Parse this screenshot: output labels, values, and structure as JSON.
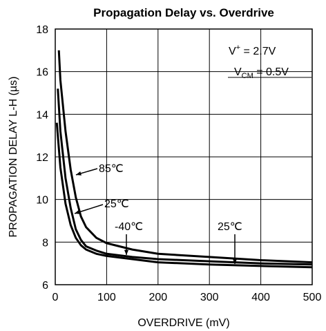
{
  "chart_data": {
    "type": "line",
    "title": "Propagation Delay vs. Overdrive",
    "x_label": "OVERDRIVE (mV)",
    "y_label": "PROPAGATION DELAY L-H (µs)",
    "xlim": [
      0,
      500
    ],
    "xticks": [
      0,
      100,
      200,
      300,
      400,
      500
    ],
    "ylim": [
      6,
      18
    ],
    "yticks": [
      6,
      8,
      10,
      12,
      14,
      16,
      18
    ],
    "grid": true,
    "series": [
      {
        "name": "85℃",
        "color": "#000000",
        "x": [
          7,
          10,
          20,
          30,
          40,
          50,
          60,
          80,
          100,
          150,
          200,
          300,
          400,
          500
        ],
        "values": [
          17,
          15.6,
          13.2,
          11.4,
          10.1,
          9.2,
          8.7,
          8.2,
          7.95,
          7.65,
          7.45,
          7.3,
          7.15,
          7.05
        ]
      },
      {
        "name": "25℃",
        "color": "#000000",
        "x": [
          5,
          10,
          20,
          30,
          40,
          50,
          60,
          80,
          100,
          150,
          200,
          300,
          400,
          500
        ],
        "values": [
          15.2,
          13.2,
          11,
          9.6,
          8.6,
          8.1,
          7.8,
          7.6,
          7.45,
          7.3,
          7.2,
          7.1,
          7.0,
          6.95
        ]
      },
      {
        "name": "-40℃",
        "color": "#000000",
        "x": [
          3,
          10,
          20,
          30,
          40,
          50,
          60,
          80,
          100,
          150,
          200,
          300,
          400,
          500
        ],
        "values": [
          13.6,
          11.5,
          9.8,
          8.8,
          8.2,
          7.85,
          7.65,
          7.45,
          7.35,
          7.2,
          7.05,
          6.95,
          6.88,
          6.82
        ]
      }
    ],
    "supply_label": {
      "main": "V",
      "sup": "+",
      "rest": " = 2.7V"
    },
    "vcm_label": {
      "main": "V",
      "sub": "CM",
      "rest": " = 0.5V"
    }
  }
}
